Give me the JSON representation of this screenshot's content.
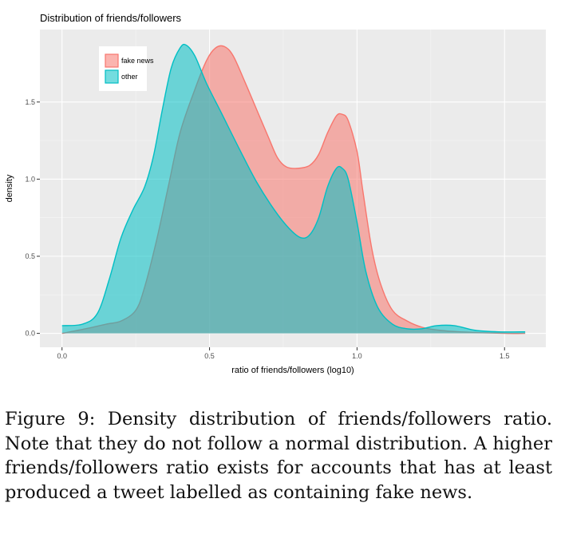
{
  "chart_data": {
    "type": "area",
    "title": "Distribution of friends/followers",
    "xlabel": "ratio of friends/followers (log10)",
    "ylabel": "density",
    "xlim": [
      -0.075,
      1.64
    ],
    "ylim": [
      -0.09,
      1.97
    ],
    "x_ticks": [
      0.0,
      0.5,
      1.0,
      1.5
    ],
    "x_tick_labels": [
      "0.0",
      "0.5",
      "1.0",
      "1.5"
    ],
    "y_ticks": [
      0.0,
      0.5,
      1.0,
      1.5
    ],
    "y_tick_labels": [
      "0.0",
      "0.5",
      "1.0",
      "1.5"
    ],
    "grid": true,
    "legend": "top-left",
    "series": [
      {
        "name": "fake news",
        "fill": "#F8766D",
        "stroke": "#F8766D",
        "x": [
          0.0,
          0.08,
          0.15,
          0.2,
          0.25,
          0.28,
          0.32,
          0.36,
          0.4,
          0.45,
          0.49,
          0.52,
          0.55,
          0.58,
          0.62,
          0.66,
          0.7,
          0.73,
          0.76,
          0.8,
          0.84,
          0.87,
          0.9,
          0.93,
          0.95,
          0.97,
          1.0,
          1.02,
          1.05,
          1.08,
          1.12,
          1.17,
          1.22,
          1.28,
          1.35,
          1.5,
          1.57
        ],
        "y": [
          0.0,
          0.03,
          0.06,
          0.08,
          0.15,
          0.3,
          0.6,
          0.95,
          1.3,
          1.58,
          1.77,
          1.85,
          1.86,
          1.8,
          1.63,
          1.45,
          1.27,
          1.14,
          1.08,
          1.07,
          1.09,
          1.16,
          1.3,
          1.41,
          1.42,
          1.38,
          1.18,
          0.92,
          0.55,
          0.32,
          0.15,
          0.08,
          0.04,
          0.02,
          0.01,
          0.0,
          0.0
        ]
      },
      {
        "name": "other",
        "fill": "#00BFC4",
        "stroke": "#00BFC4",
        "x": [
          0.0,
          0.07,
          0.12,
          0.16,
          0.2,
          0.24,
          0.28,
          0.31,
          0.34,
          0.37,
          0.4,
          0.42,
          0.45,
          0.49,
          0.54,
          0.6,
          0.66,
          0.72,
          0.77,
          0.81,
          0.84,
          0.87,
          0.9,
          0.93,
          0.95,
          0.97,
          1.0,
          1.03,
          1.07,
          1.12,
          1.17,
          1.22,
          1.27,
          1.33,
          1.4,
          1.48,
          1.57
        ],
        "y": [
          0.05,
          0.06,
          0.13,
          0.35,
          0.62,
          0.8,
          0.95,
          1.15,
          1.45,
          1.72,
          1.85,
          1.87,
          1.8,
          1.62,
          1.43,
          1.2,
          0.98,
          0.8,
          0.68,
          0.62,
          0.64,
          0.75,
          0.95,
          1.07,
          1.07,
          1.0,
          0.72,
          0.4,
          0.17,
          0.06,
          0.03,
          0.03,
          0.05,
          0.05,
          0.02,
          0.01,
          0.01
        ]
      }
    ]
  },
  "caption": "Figure 9: Density distribution of friends/followers ratio. Note that they do not follow a normal distribution. A higher friends/followers ratio exists for accounts that has at least produced a tweet labelled as containing fake news."
}
